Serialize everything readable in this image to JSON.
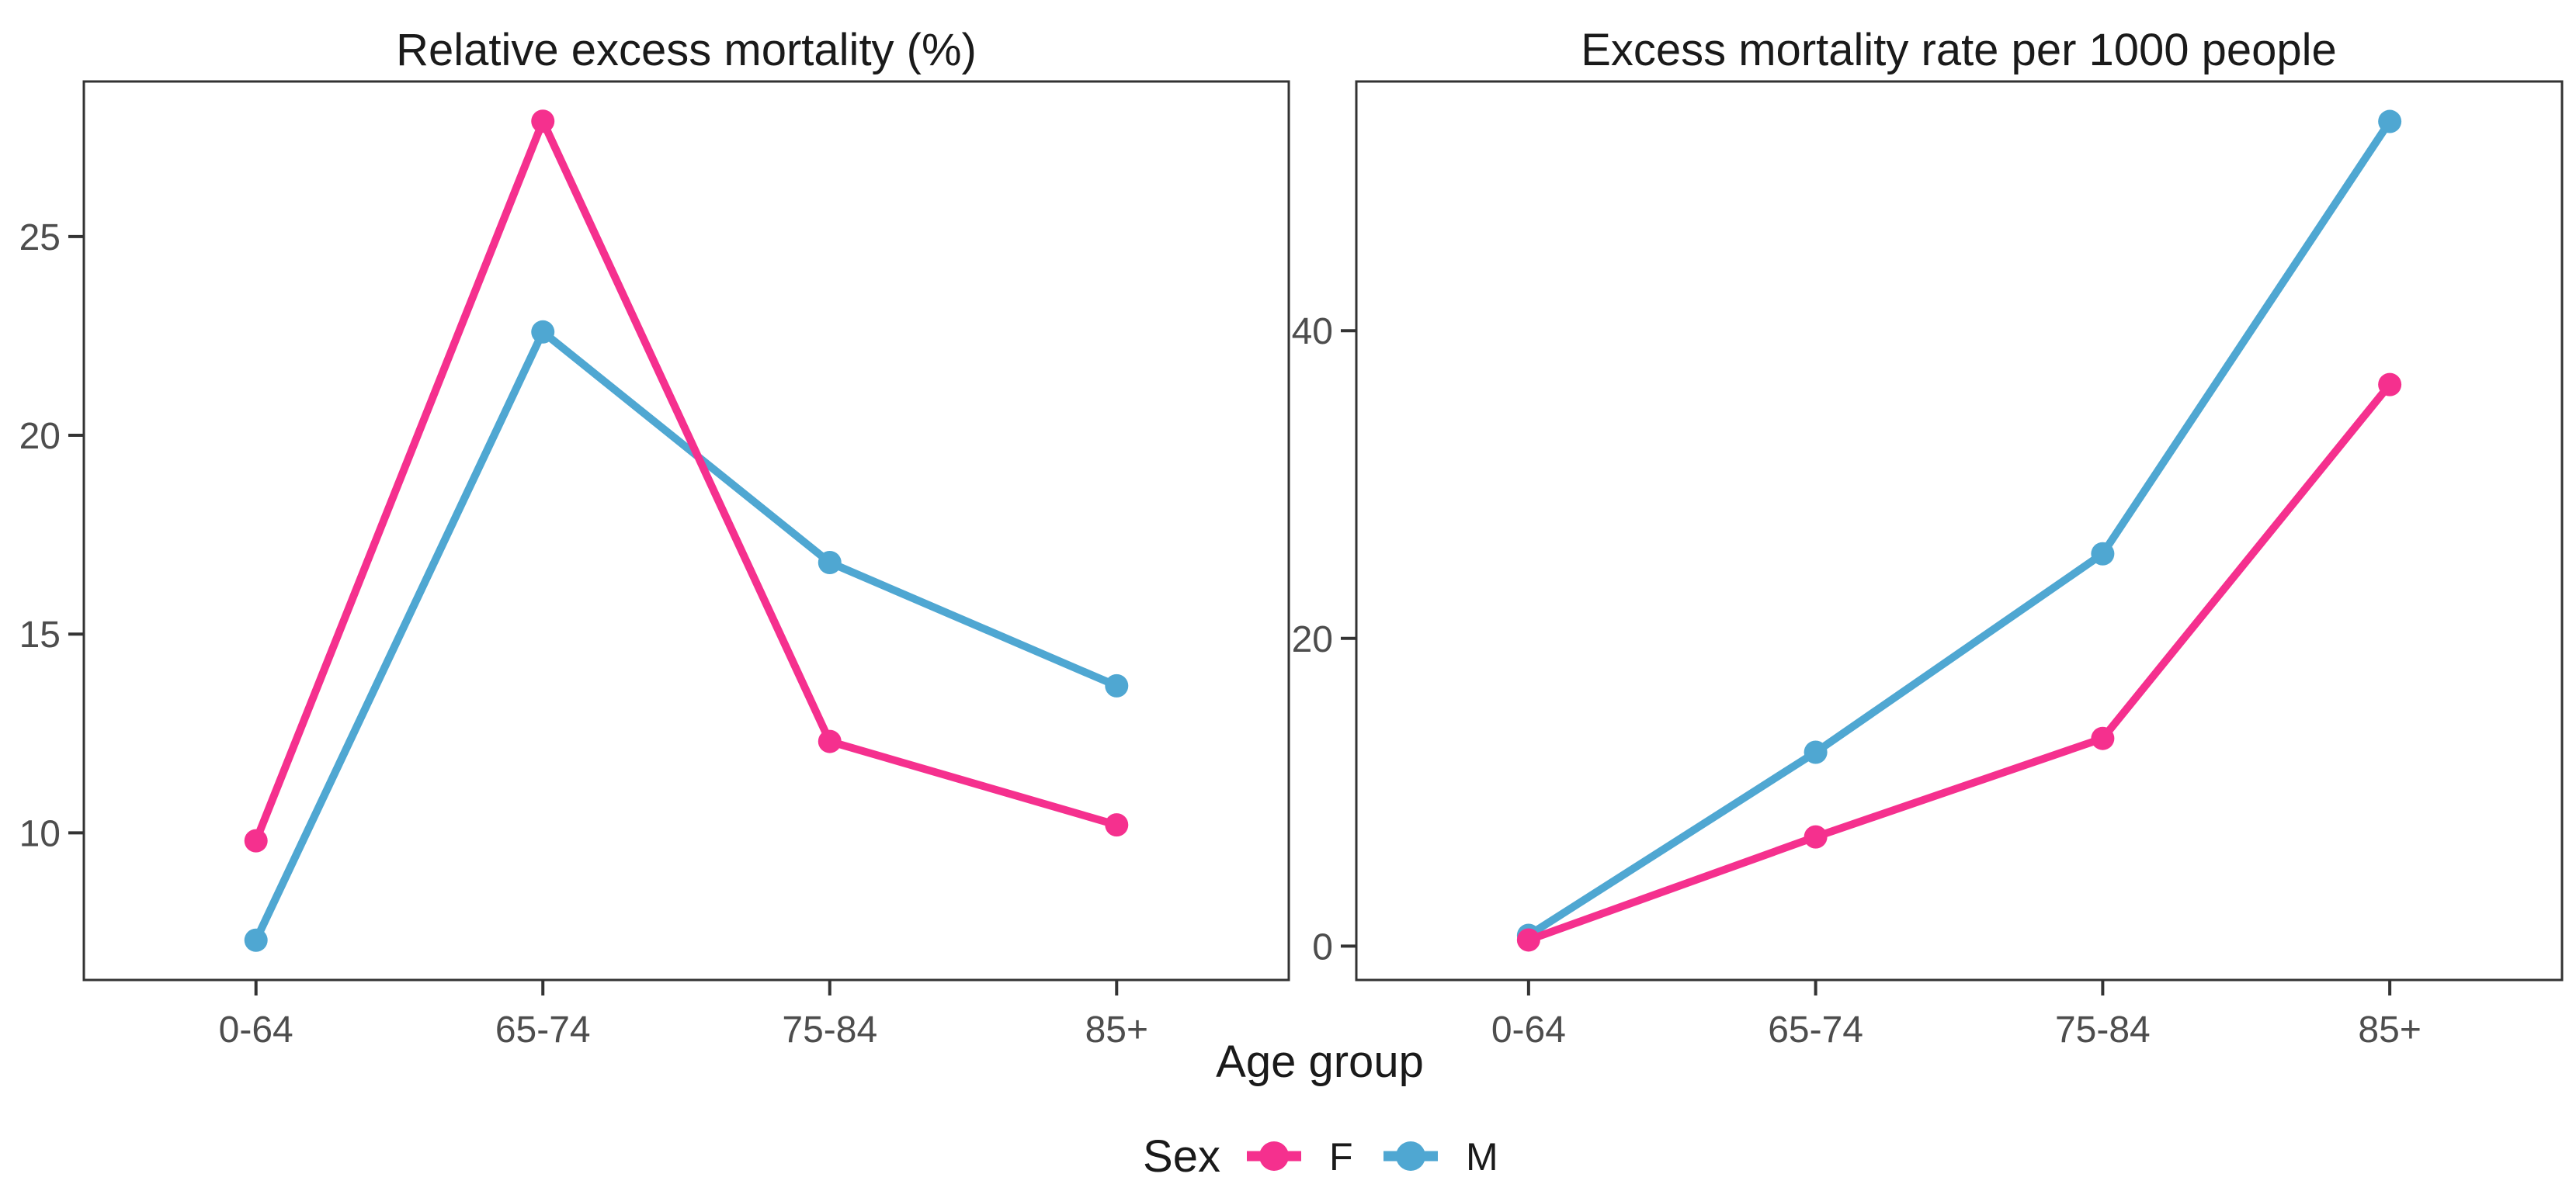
{
  "figure": {
    "xlabel": "Age group",
    "legend": {
      "title": "Sex",
      "position": "bottom",
      "entries": [
        {
          "label": "F",
          "color": "#F5308E"
        },
        {
          "label": "M",
          "color": "#4FA7D2"
        }
      ]
    },
    "colors": {
      "F": "#F5308E",
      "M": "#4FA7D2",
      "axis_line": "#333333",
      "axis_text": "#4d4d4d",
      "title_text": "#1a1a1a",
      "background": "#ffffff"
    }
  },
  "chart_data": [
    {
      "type": "line",
      "title": "Relative excess mortality (%)",
      "categories": [
        "0-64",
        "65-74",
        "75-84",
        "85+"
      ],
      "series": [
        {
          "name": "F",
          "values": [
            9.8,
            27.9,
            12.3,
            10.2
          ]
        },
        {
          "name": "M",
          "values": [
            7.3,
            22.6,
            16.8,
            13.7
          ]
        }
      ],
      "ylim": [
        6.3,
        28.9
      ],
      "yticks": [
        10,
        15,
        20,
        25
      ],
      "grid": false,
      "legend_position": "bottom"
    },
    {
      "type": "line",
      "title": "Excess mortality rate per 1000 people",
      "categories": [
        "0-64",
        "65-74",
        "75-84",
        "85+"
      ],
      "series": [
        {
          "name": "F",
          "values": [
            0.4,
            7.1,
            13.5,
            36.5
          ]
        },
        {
          "name": "M",
          "values": [
            0.7,
            12.6,
            25.5,
            53.6
          ]
        }
      ],
      "ylim": [
        -2.2,
        56.2
      ],
      "yticks": [
        0,
        20,
        40
      ],
      "grid": false,
      "legend_position": "bottom"
    }
  ]
}
